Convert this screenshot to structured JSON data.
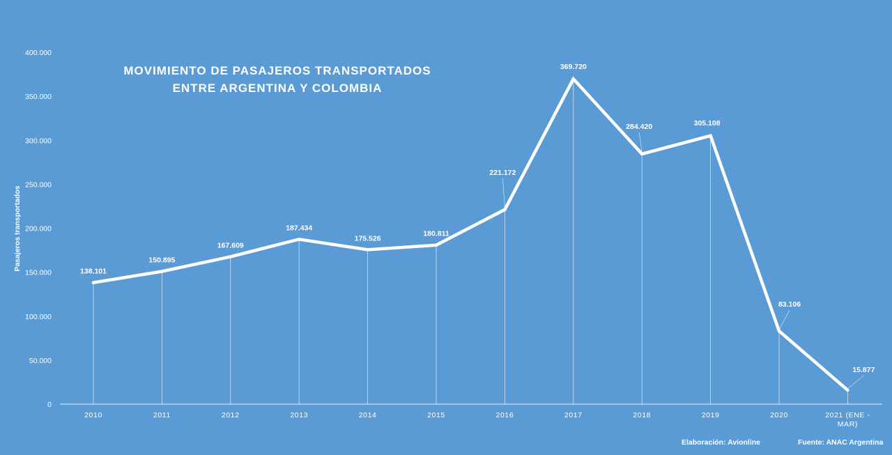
{
  "chart_data": {
    "type": "line",
    "title_lines": [
      "MOVIMIENTO  DE PASAJEROS TRANSPORTADOS",
      "ENTRE ARGENTINA  Y COLOMBIA"
    ],
    "ylabel": "Pasajeros transportados",
    "xlabel": "",
    "ylim": [
      0,
      400000
    ],
    "yticks": [
      0,
      50000,
      100000,
      150000,
      200000,
      250000,
      300000,
      350000,
      400000
    ],
    "ytick_labels": [
      "0",
      "50.000",
      "100.000",
      "150.000",
      "200.000",
      "250.000",
      "300.000",
      "350.000",
      "400.000"
    ],
    "categories": [
      "2010",
      "2011",
      "2012",
      "2013",
      "2014",
      "2015",
      "2016",
      "2017",
      "2018",
      "2019",
      "2020",
      "2021 (ENE - MAR)"
    ],
    "category_label_lines": [
      [
        "2010"
      ],
      [
        "2011"
      ],
      [
        "2012"
      ],
      [
        "2013"
      ],
      [
        "2014"
      ],
      [
        "2015"
      ],
      [
        "2016"
      ],
      [
        "2017"
      ],
      [
        "2018"
      ],
      [
        "2019"
      ],
      [
        "2020"
      ],
      [
        "2021  (ENE -",
        "MAR)"
      ]
    ],
    "values": [
      138101,
      150895,
      167609,
      187434,
      175526,
      180811,
      221172,
      369720,
      284420,
      305108,
      83106,
      15877
    ],
    "data_labels": [
      "138.101",
      "150.895",
      "167.609",
      "187.434",
      "175.526",
      "180.811",
      "221.172",
      "369.720",
      "284.420",
      "305.108",
      "83.106",
      "15.877"
    ],
    "grid": false,
    "drop_lines": true,
    "line_color": "#ffffff",
    "background": "#5b9bd5"
  },
  "footer": {
    "elaboracion": "Elaboración:  Avionline",
    "fuente": "Fuente: ANAC Argentina"
  }
}
